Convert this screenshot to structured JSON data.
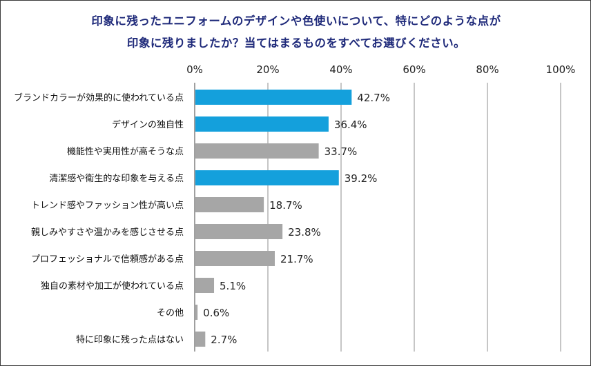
{
  "chart_data": {
    "type": "bar",
    "orientation": "horizontal",
    "title_lines": [
      "印象に残ったユニフォームのデザインや色使いについて、特にどのような点が",
      "印象に残りましたか？当てはまるものをすべてお選びください。"
    ],
    "xlim": [
      0,
      100
    ],
    "ticks": [
      0,
      20,
      40,
      60,
      80,
      100
    ],
    "tick_labels": [
      "0%",
      "20%",
      "40%",
      "60%",
      "80%",
      "100%"
    ],
    "grid": true,
    "categories": [
      "ブランドカラーが効果的に使われている点",
      "デザインの独自性",
      "機能性や実用性が高そうな点",
      "清潔感や衛生的な印象を与える点",
      "トレンド感やファッション性が高い点",
      "親しみやすさや温かみを感じさせる点",
      "プロフェッショナルで信頼感がある点",
      "独自の素材や加工が使われている点",
      "その他",
      "特に印象に残った点はない"
    ],
    "values": [
      42.7,
      36.4,
      33.7,
      39.2,
      18.7,
      23.8,
      21.7,
      5.1,
      0.6,
      2.7
    ],
    "value_labels": [
      "42.7%",
      "36.4%",
      "33.7%",
      "39.2%",
      "18.7%",
      "23.8%",
      "21.7%",
      "5.1%",
      "0.6%",
      "2.7%"
    ],
    "highlighted": [
      true,
      true,
      false,
      true,
      false,
      false,
      false,
      false,
      false,
      false
    ],
    "colors": {
      "highlight": "#14a0dc",
      "default": "#a6a6a6",
      "grid": "#8c8c8c",
      "axis": "#606060",
      "title": "#1f2a7a"
    }
  }
}
